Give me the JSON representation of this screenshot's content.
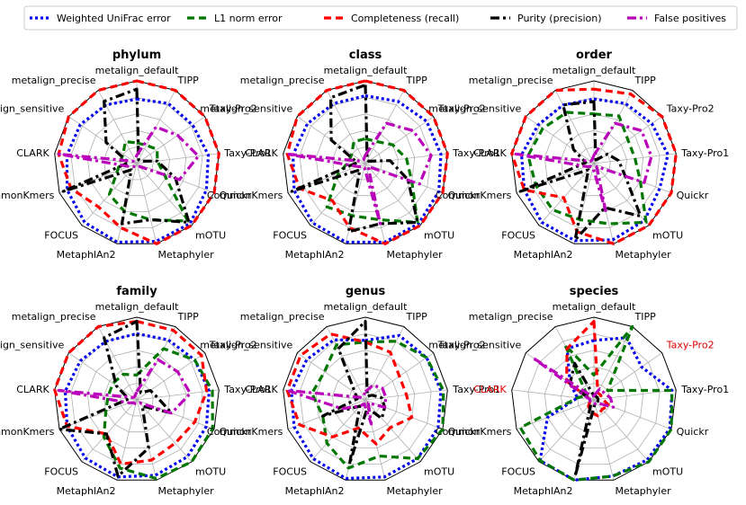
{
  "chart_data": {
    "type": "radar",
    "legend_placement": "top",
    "grid": true,
    "rlim": [
      0,
      1
    ],
    "categories": [
      "metalign_default",
      "TIPP",
      "Taxy-Pro2",
      "Taxy-Pro1",
      "Quickr",
      "mOTU",
      "Metaphyler",
      "MetaphlAn2",
      "FOCUS",
      "CommonKmers",
      "CLARK",
      "metalign_sensitive",
      "metalign_precise"
    ],
    "series": [
      {
        "name": "Weighted UniFrac error",
        "color": "#0000ee",
        "dash": "dotted"
      },
      {
        "name": "L1 norm error",
        "color": "#007700",
        "dash": "dashed"
      },
      {
        "name": "Completeness (recall)",
        "color": "#ff0000",
        "dash": "dashed"
      },
      {
        "name": "Purity (precision)",
        "color": "#000000",
        "dash": "dashdot"
      },
      {
        "name": "False positives",
        "color": "#bb00bb",
        "dash": "dashdot"
      }
    ],
    "panels": [
      {
        "title": "phylum",
        "highlighted_categories": [],
        "values": [
          [
            0.78,
            0.82,
            0.82,
            0.87,
            0.9,
            0.97,
            0.97,
            0.98,
            0.95,
            0.9,
            0.85,
            0.83,
            0.8
          ],
          [
            0.25,
            0.25,
            0.3,
            0.25,
            0.35,
            0.93,
            0.7,
            0.6,
            0.5,
            0.25,
            0.2,
            0.2,
            0.3
          ],
          [
            1.0,
            1.0,
            1.0,
            1.0,
            1.0,
            1.0,
            1.0,
            0.8,
            0.7,
            0.85,
            0.95,
            1.0,
            1.0
          ],
          [
            0.9,
            0.05,
            0.05,
            0.25,
            0.5,
            0.95,
            0.7,
            0.75,
            0.1,
            0.95,
            0.1,
            0.45,
            0.85
          ],
          [
            0.1,
            0.5,
            0.6,
            0.75,
            0.55,
            0.05,
            0.05,
            0.05,
            0.05,
            0.1,
            0.95,
            0.05,
            0.05
          ]
        ]
      },
      {
        "title": "class",
        "highlighted_categories": [],
        "values": [
          [
            0.82,
            0.85,
            0.9,
            0.92,
            0.95,
            0.97,
            0.98,
            0.98,
            0.96,
            0.92,
            0.88,
            0.85,
            0.82
          ],
          [
            0.3,
            0.3,
            0.4,
            0.5,
            0.6,
            0.95,
            0.7,
            0.65,
            0.7,
            0.35,
            0.2,
            0.2,
            0.3
          ],
          [
            1.0,
            1.0,
            1.0,
            1.0,
            1.0,
            1.0,
            1.0,
            0.8,
            0.6,
            0.85,
            0.95,
            1.0,
            1.0
          ],
          [
            0.95,
            0.05,
            0.05,
            0.3,
            0.55,
            0.95,
            0.75,
            0.85,
            0.1,
            0.95,
            0.1,
            0.5,
            0.9
          ],
          [
            0.1,
            0.55,
            0.7,
            0.8,
            0.7,
            0.05,
            0.75,
            0.05,
            0.05,
            0.1,
            0.95,
            0.05,
            0.05
          ]
        ]
      },
      {
        "title": "order",
        "highlighted_categories": [],
        "values": [
          [
            0.78,
            0.82,
            0.85,
            0.9,
            0.85,
            0.92,
            0.95,
            0.96,
            0.95,
            0.9,
            0.88,
            0.82,
            0.8
          ],
          [
            0.6,
            0.65,
            0.5,
            0.5,
            0.6,
            0.95,
            0.75,
            0.7,
            0.75,
            0.75,
            0.8,
            0.75,
            0.7
          ],
          [
            0.9,
            0.95,
            1.0,
            1.0,
            1.0,
            1.0,
            1.0,
            0.85,
            0.55,
            0.9,
            1.0,
            1.0,
            1.0
          ],
          [
            0.75,
            0.05,
            0.2,
            0.3,
            0.4,
            0.85,
            0.55,
            0.95,
            0.1,
            0.95,
            0.1,
            0.3,
            0.8
          ],
          [
            0.1,
            0.55,
            0.7,
            0.7,
            0.65,
            0.05,
            0.6,
            0.05,
            0.05,
            0.1,
            0.95,
            0.05,
            0.05
          ]
        ]
      },
      {
        "title": "family",
        "highlighted_categories": [],
        "values": [
          [
            0.8,
            0.82,
            0.85,
            0.88,
            0.9,
            0.92,
            0.94,
            0.96,
            0.94,
            0.9,
            0.87,
            0.83,
            0.8
          ],
          [
            0.3,
            0.7,
            0.85,
            0.92,
            0.98,
            1.0,
            0.98,
            0.85,
            0.6,
            0.4,
            0.35,
            0.35,
            0.35
          ],
          [
            0.95,
            0.95,
            0.95,
            0.85,
            0.75,
            0.7,
            0.75,
            0.8,
            0.55,
            0.9,
            1.0,
            1.0,
            1.0
          ],
          [
            0.95,
            0.1,
            0.2,
            0.25,
            0.45,
            0.1,
            0.6,
            0.95,
            0.55,
            1.0,
            0.1,
            0.3,
            0.85
          ],
          [
            0.1,
            0.55,
            0.6,
            0.65,
            0.45,
            0.05,
            0.05,
            0.05,
            0.05,
            0.1,
            0.95,
            0.05,
            0.05
          ]
        ]
      },
      {
        "title": "genus",
        "highlighted_categories": [],
        "values": [
          [
            0.72,
            0.88,
            0.9,
            0.92,
            0.94,
            0.95,
            0.96,
            0.98,
            0.95,
            0.92,
            0.9,
            0.86,
            0.82
          ],
          [
            0.7,
            0.8,
            0.9,
            0.95,
            1.0,
            0.95,
            0.7,
            0.85,
            0.7,
            0.55,
            0.65,
            0.6,
            0.75
          ],
          [
            0.7,
            0.65,
            0.5,
            0.5,
            0.6,
            0.45,
            0.55,
            0.35,
            0.6,
            0.85,
            0.95,
            0.95,
            0.9
          ],
          [
            0.95,
            0.05,
            0.1,
            0.2,
            0.25,
            0.3,
            0.1,
            0.8,
            0.1,
            0.55,
            0.1,
            0.15,
            0.7
          ],
          [
            0.1,
            0.2,
            0.25,
            0.25,
            0.25,
            0.05,
            0.3,
            0.05,
            0.1,
            0.3,
            0.95,
            0.05,
            0.05
          ]
        ]
      },
      {
        "title": "species",
        "highlighted_categories": [
          "Taxy-Pro2",
          "CLARK"
        ],
        "values": [
          [
            0.72,
            0.85,
            0.7,
            0.95,
            0.98,
            0.97,
            0.95,
            1.0,
            0.98,
            0.6,
            0.2,
            0.35,
            0.7
          ],
          [
            0.3,
            1.0,
            0.2,
            0.95,
            1.0,
            1.0,
            0.95,
            1.0,
            0.98,
            0.95,
            0.2,
            0.1,
            0.75
          ],
          [
            0.95,
            0.1,
            0.1,
            0.1,
            0.2,
            0.15,
            0.2,
            0.15,
            0.1,
            0.05,
            0.05,
            0.4,
            0.7
          ],
          [
            0.05,
            0.05,
            0.05,
            0.05,
            0.05,
            0.05,
            0.05,
            0.95,
            0.05,
            0.05,
            0.05,
            0.35,
            0.5
          ],
          [
            0.05,
            0.15,
            0.15,
            0.2,
            0.25,
            0.05,
            0.05,
            0.05,
            0.05,
            0.05,
            0.05,
            0.9,
            0.05
          ]
        ]
      }
    ]
  }
}
